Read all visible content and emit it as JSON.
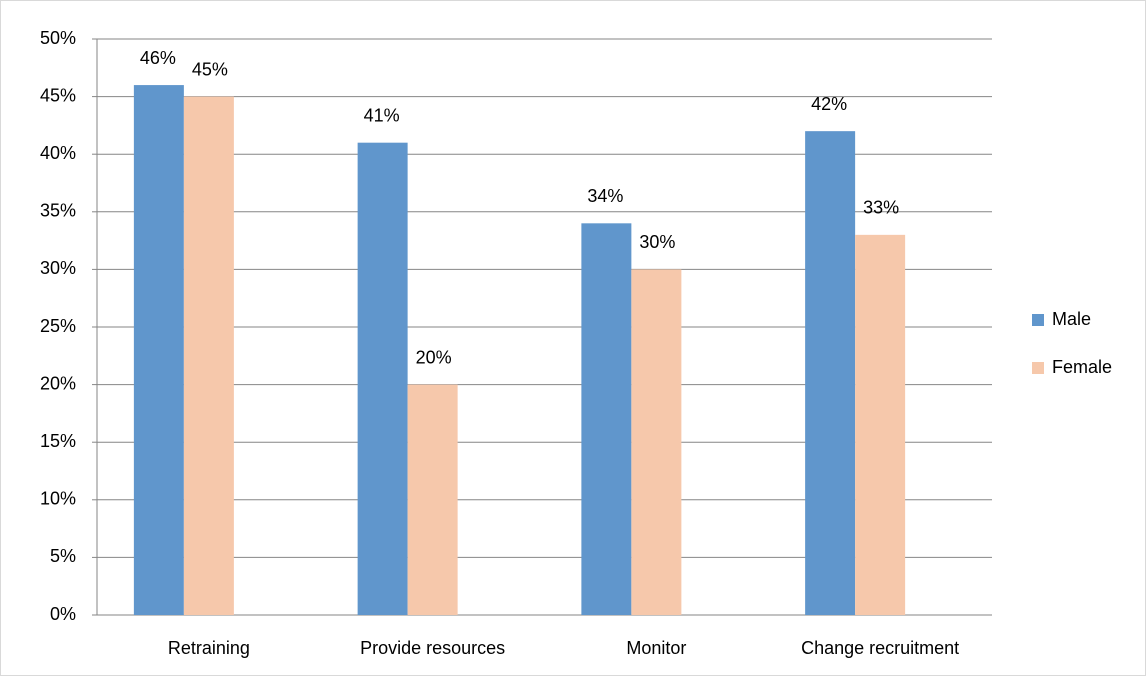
{
  "chart_data": {
    "type": "bar",
    "categories": [
      "Retraining",
      "Provide resources",
      "Monitor",
      "Change recruitment"
    ],
    "series": [
      {
        "name": "Male",
        "color": "#6096cc",
        "values": [
          46,
          41,
          34,
          42
        ],
        "value_labels": [
          "46%",
          "41%",
          "34%",
          "42%"
        ]
      },
      {
        "name": "Female",
        "color": "#f6c8ab",
        "values": [
          45,
          20,
          30,
          33
        ],
        "value_labels": [
          "45%",
          "20%",
          "30%",
          "33%"
        ]
      }
    ],
    "ylim": [
      0,
      50
    ],
    "yticks": [
      {
        "value": 0,
        "label": "0%"
      },
      {
        "value": 5,
        "label": "5%"
      },
      {
        "value": 10,
        "label": "10%"
      },
      {
        "value": 15,
        "label": "15%"
      },
      {
        "value": 20,
        "label": "20%"
      },
      {
        "value": 25,
        "label": "25%"
      },
      {
        "value": 30,
        "label": "30%"
      },
      {
        "value": 35,
        "label": "35%"
      },
      {
        "value": 40,
        "label": "40%"
      },
      {
        "value": 45,
        "label": "45%"
      },
      {
        "value": 50,
        "label": "50%"
      }
    ],
    "grid": true,
    "legend": "right"
  }
}
